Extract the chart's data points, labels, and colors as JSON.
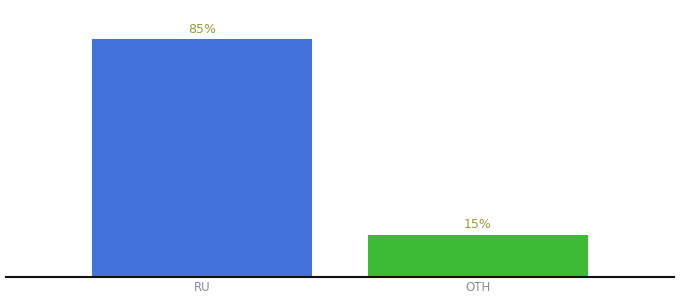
{
  "categories": [
    "RU",
    "OTH"
  ],
  "values": [
    85,
    15
  ],
  "bar_colors": [
    "#4472db",
    "#3dbb35"
  ],
  "label_color": "#9a9a40",
  "tick_color": "#8888aa",
  "background_color": "#ffffff",
  "bar_width": 0.28,
  "x_positions": [
    0.3,
    0.65
  ],
  "xlim": [
    0.05,
    0.9
  ],
  "ylim": [
    0,
    97
  ],
  "label_fontsize": 9,
  "tick_fontsize": 8.5,
  "spine_color": "#111111",
  "spine_linewidth": 1.5
}
